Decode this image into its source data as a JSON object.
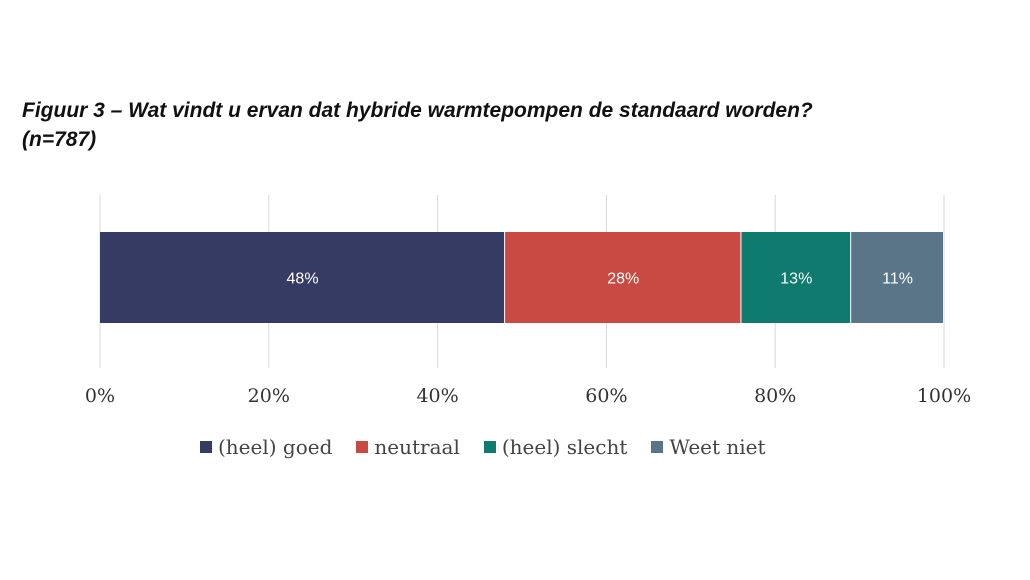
{
  "chart_data": {
    "type": "bar",
    "orientation": "horizontal-stacked",
    "title": "Figuur 3 – Wat vindt u ervan dat hybride warmtepompen de standaard worden?",
    "subtitle": "(n=787)",
    "series": [
      {
        "name": "(heel) goed",
        "values": [
          48
        ],
        "label": "48%",
        "color": "#363b63"
      },
      {
        "name": "neutraal",
        "values": [
          28
        ],
        "label": "28%",
        "color": "#c84a42"
      },
      {
        "name": "(heel) slecht",
        "values": [
          13
        ],
        "label": "13%",
        "color": "#0f7a6e"
      },
      {
        "name": "Weet niet",
        "values": [
          11
        ],
        "label": "11%",
        "color": "#5b7588"
      }
    ],
    "xlim": [
      0,
      100
    ],
    "xticks": [
      "0%",
      "20%",
      "40%",
      "60%",
      "80%",
      "100%"
    ],
    "grid": "vertical",
    "legend": "bottom",
    "colors": {
      "gridline": "#d9d9d9",
      "bar_text": "#ffffff"
    }
  }
}
